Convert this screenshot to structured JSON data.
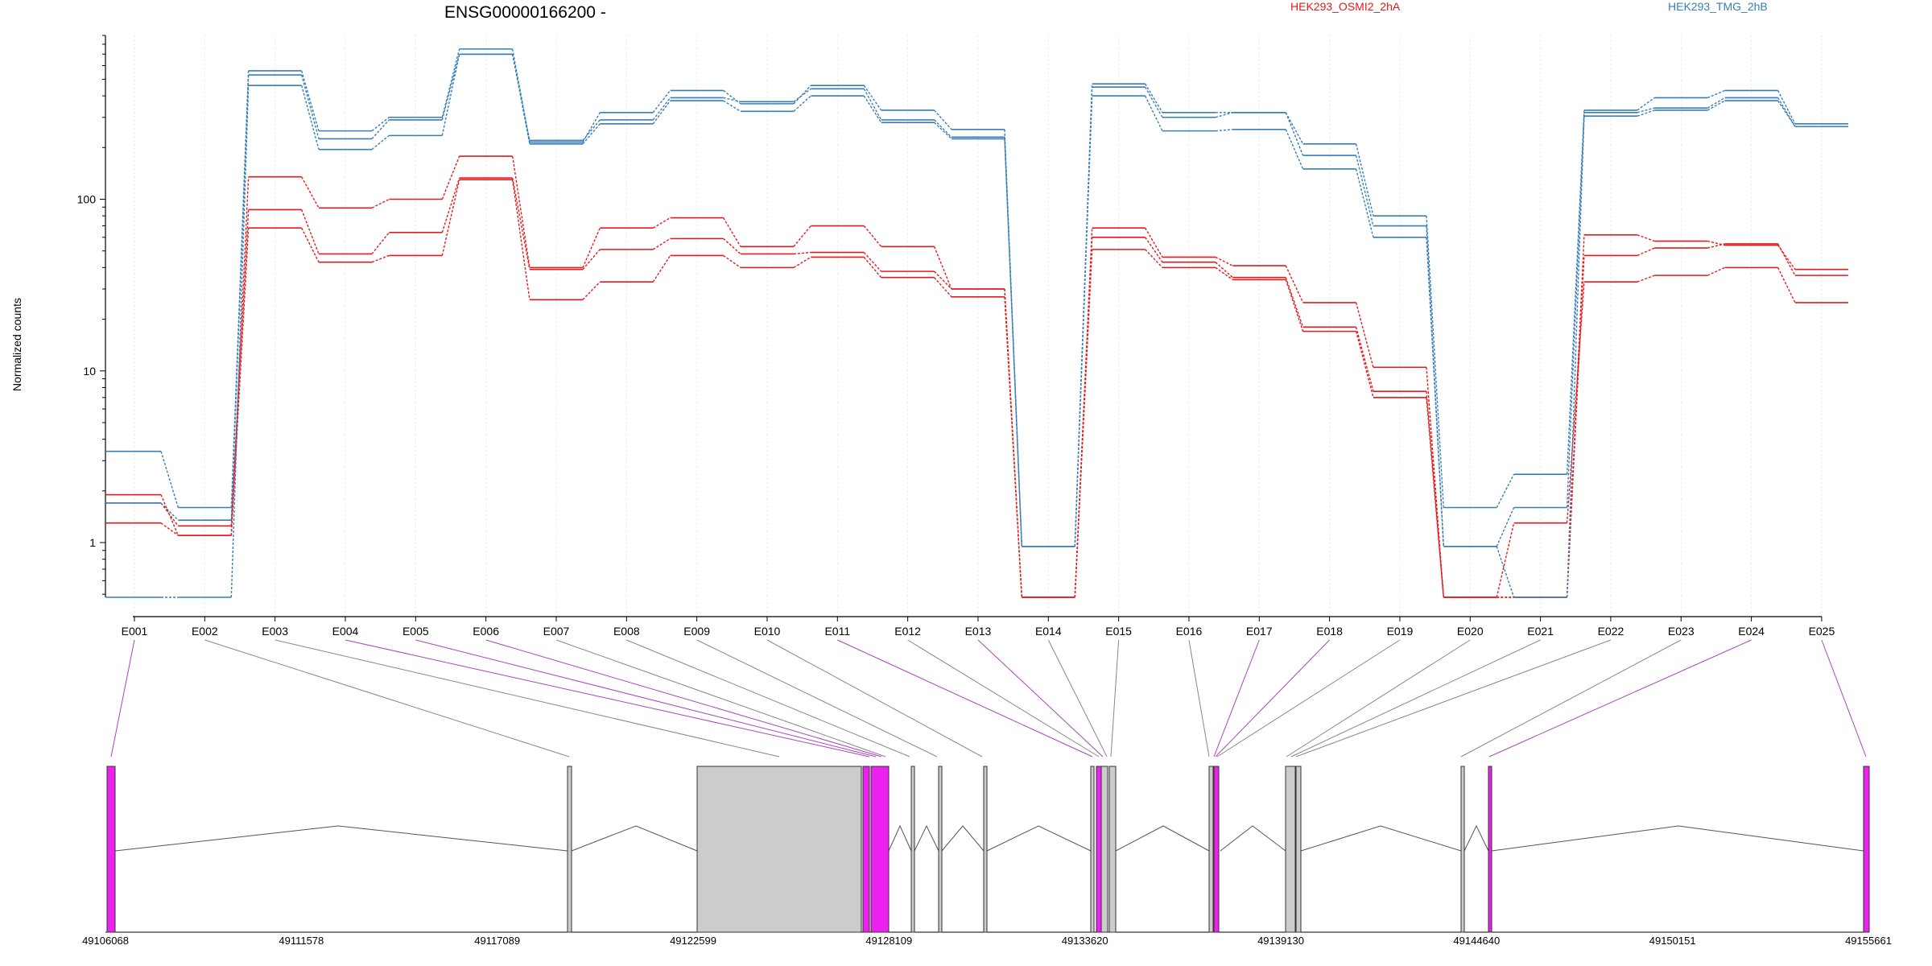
{
  "chart_data": {
    "type": "line",
    "title": "ENSG00000166200 -",
    "ylabel": "Normalized counts",
    "yscale": "log",
    "ylim": [
      0.48,
      900
    ],
    "yticks": [
      1,
      10,
      100
    ],
    "ytick_labels": [
      "1",
      "10",
      "100"
    ],
    "categories": [
      "E001",
      "E002",
      "E003",
      "E004",
      "E005",
      "E006",
      "E007",
      "E008",
      "E009",
      "E010",
      "E011",
      "E012",
      "E013",
      "E014",
      "E015",
      "E016",
      "E017",
      "E018",
      "E019",
      "E020",
      "E021",
      "E022",
      "E023",
      "E024",
      "E025"
    ],
    "legend": [
      {
        "label": "HEK293_OSMI2_2hA",
        "color": "#e41a1c"
      },
      {
        "label": "HEK293_TMG_2hB",
        "color": "#377eb8"
      }
    ],
    "series": [
      {
        "group": "HEK293_OSMI2_2hA",
        "color": "#e41a1c",
        "values": [
          1.9,
          1.1,
          135,
          89,
          100,
          178,
          40,
          68,
          78,
          53,
          70,
          53,
          30,
          0.48,
          68,
          46,
          41,
          25,
          10.5,
          0.48,
          0.48,
          62,
          57,
          54,
          39
        ]
      },
      {
        "group": "HEK293_OSMI2_2hA",
        "color": "#e41a1c",
        "values": [
          1.7,
          1.25,
          87,
          48,
          64,
          133,
          39,
          51,
          59,
          48,
          49,
          38,
          30,
          0.48,
          60,
          43,
          35,
          18,
          7.6,
          0.48,
          0.48,
          47,
          52,
          55,
          36
        ]
      },
      {
        "group": "HEK293_OSMI2_2hA",
        "color": "#e41a1c",
        "values": [
          1.3,
          1.1,
          68,
          43,
          47,
          130,
          26,
          33,
          47,
          40,
          46,
          35,
          27,
          0.48,
          51,
          40,
          34,
          17,
          7.0,
          0.48,
          1.3,
          33,
          36,
          40,
          25
        ]
      },
      {
        "group": "HEK293_TMG_2hB",
        "color": "#377eb8",
        "values": [
          3.4,
          1.6,
          560,
          250,
          300,
          750,
          215,
          320,
          430,
          360,
          460,
          330,
          255,
          0.95,
          470,
          320,
          320,
          210,
          80,
          1.6,
          2.5,
          330,
          390,
          430,
          275
        ]
      },
      {
        "group": "HEK293_TMG_2hB",
        "color": "#377eb8",
        "values": [
          1.7,
          1.35,
          530,
          225,
          290,
          700,
          220,
          290,
          390,
          370,
          440,
          290,
          230,
          0.95,
          450,
          300,
          320,
          180,
          70,
          0.95,
          1.6,
          320,
          340,
          390,
          265
        ]
      },
      {
        "group": "HEK293_TMG_2hB",
        "color": "#377eb8",
        "values": [
          0.48,
          0.48,
          460,
          195,
          235,
          700,
          210,
          275,
          375,
          325,
          400,
          280,
          225,
          0.95,
          400,
          250,
          255,
          150,
          60,
          0.95,
          0.48,
          305,
          330,
          375,
          265
        ]
      }
    ],
    "gene_model": {
      "genomic_ticks": [
        "49106068",
        "49111578",
        "49117089",
        "49122599",
        "49128109",
        "49133620",
        "49139130",
        "49144640",
        "49150151",
        "49155661"
      ],
      "exon_fill_colors": {
        "significant": "#ee22ee",
        "tested": "#cccccc",
        "intron": "#ffffff"
      },
      "highlighted_exons": [
        "E001",
        "E004",
        "E005",
        "E006",
        "E011",
        "E013",
        "E017",
        "E018",
        "E024",
        "E025"
      ],
      "connector_colors": {
        "highlighted": "#aa44bb",
        "normal": "#888888"
      }
    }
  }
}
